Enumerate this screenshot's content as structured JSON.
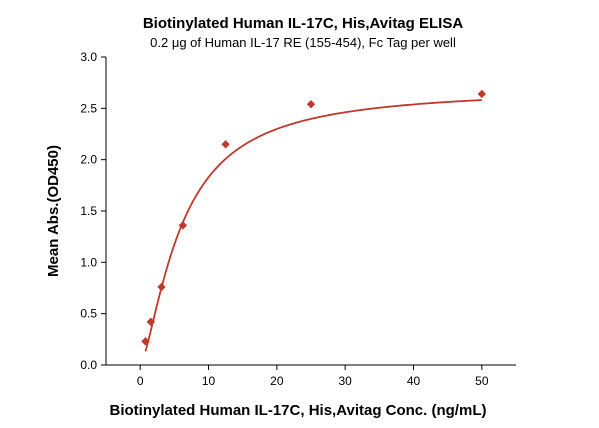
{
  "chart_data": {
    "type": "scatter",
    "title": "Biotinylated Human IL-17C, His,Avitag ELISA",
    "subtitle": "0.2 μg of Human IL-17 RE (155-454), Fc Tag per well",
    "xlabel": "Biotinylated Human IL-17C, His,Avitag Conc. (ng/mL)",
    "ylabel": "Mean Abs.(OD450)",
    "xlim": [
      -5,
      55
    ],
    "ylim": [
      0,
      3
    ],
    "xticks": [
      "0",
      "10",
      "20",
      "30",
      "40",
      "50"
    ],
    "yticks": [
      "0.0",
      "0.5",
      "1.0",
      "1.5",
      "2.0",
      "2.5",
      "3.0"
    ],
    "grid": false,
    "series": [
      {
        "marker": "diamond",
        "color": "#c0392b",
        "x": [
          0.78,
          1.56,
          3.125,
          6.25,
          12.5,
          25,
          50
        ],
        "y": [
          0.23,
          0.42,
          0.76,
          1.36,
          2.15,
          2.54,
          2.64
        ]
      }
    ],
    "fit_curve": {
      "color": "#c0392b",
      "model": "4PL",
      "bottom": 0.0,
      "top": 2.7,
      "ec50": 6.0,
      "hill": 1.45
    }
  }
}
